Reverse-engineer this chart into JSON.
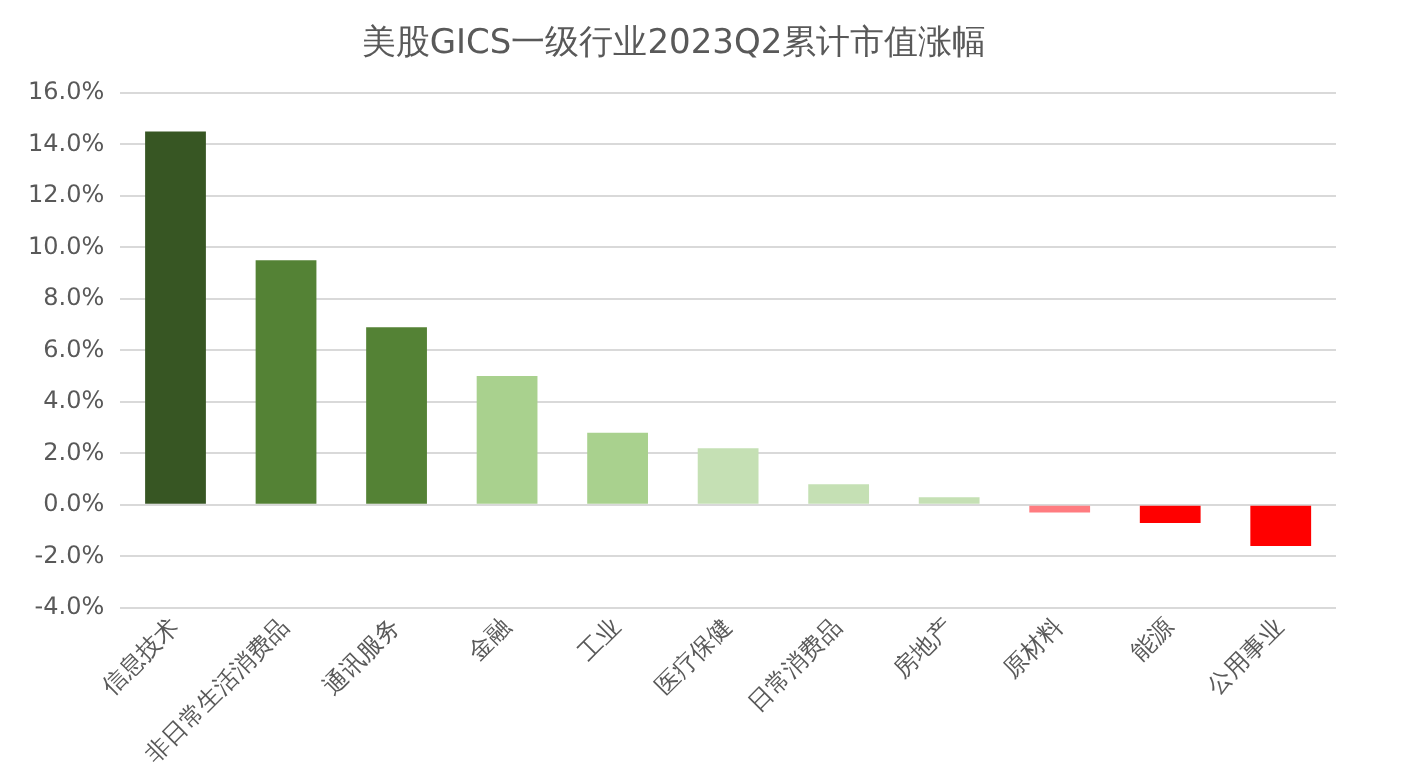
{
  "chart_data": {
    "type": "bar",
    "title": "美股GICS一级行业2023Q2累计市值涨幅",
    "categories": [
      "信息技术",
      "非日常生活消费品",
      "通讯服务",
      "金融",
      "工业",
      "医疗保健",
      "日常消费品",
      "房地产",
      "原材料",
      "能源",
      "公用事业"
    ],
    "values": [
      14.5,
      9.5,
      6.9,
      5.0,
      2.8,
      2.2,
      0.8,
      0.3,
      -0.3,
      -0.7,
      -1.6
    ],
    "colors": [
      "#375623",
      "#548235",
      "#548235",
      "#a9d18e",
      "#a9d18e",
      "#c5e0b4",
      "#c5e0b4",
      "#c5e0b4",
      "#ff7c80",
      "#ff0000",
      "#ff0000"
    ],
    "ylim": [
      -4,
      16
    ],
    "yticks": [
      {
        "value": -4,
        "label": "-4.0%"
      },
      {
        "value": -2,
        "label": "-2.0%"
      },
      {
        "value": 0,
        "label": "0.0%"
      },
      {
        "value": 2,
        "label": "2.0%"
      },
      {
        "value": 4,
        "label": "4.0%"
      },
      {
        "value": 6,
        "label": "6.0%"
      },
      {
        "value": 8,
        "label": "8.0%"
      },
      {
        "value": 10,
        "label": "10.0%"
      },
      {
        "value": 12,
        "label": "12.0%"
      },
      {
        "value": 14,
        "label": "14.0%"
      },
      {
        "value": 16,
        "label": "16.0%"
      }
    ],
    "grid": "y",
    "legend": false
  }
}
